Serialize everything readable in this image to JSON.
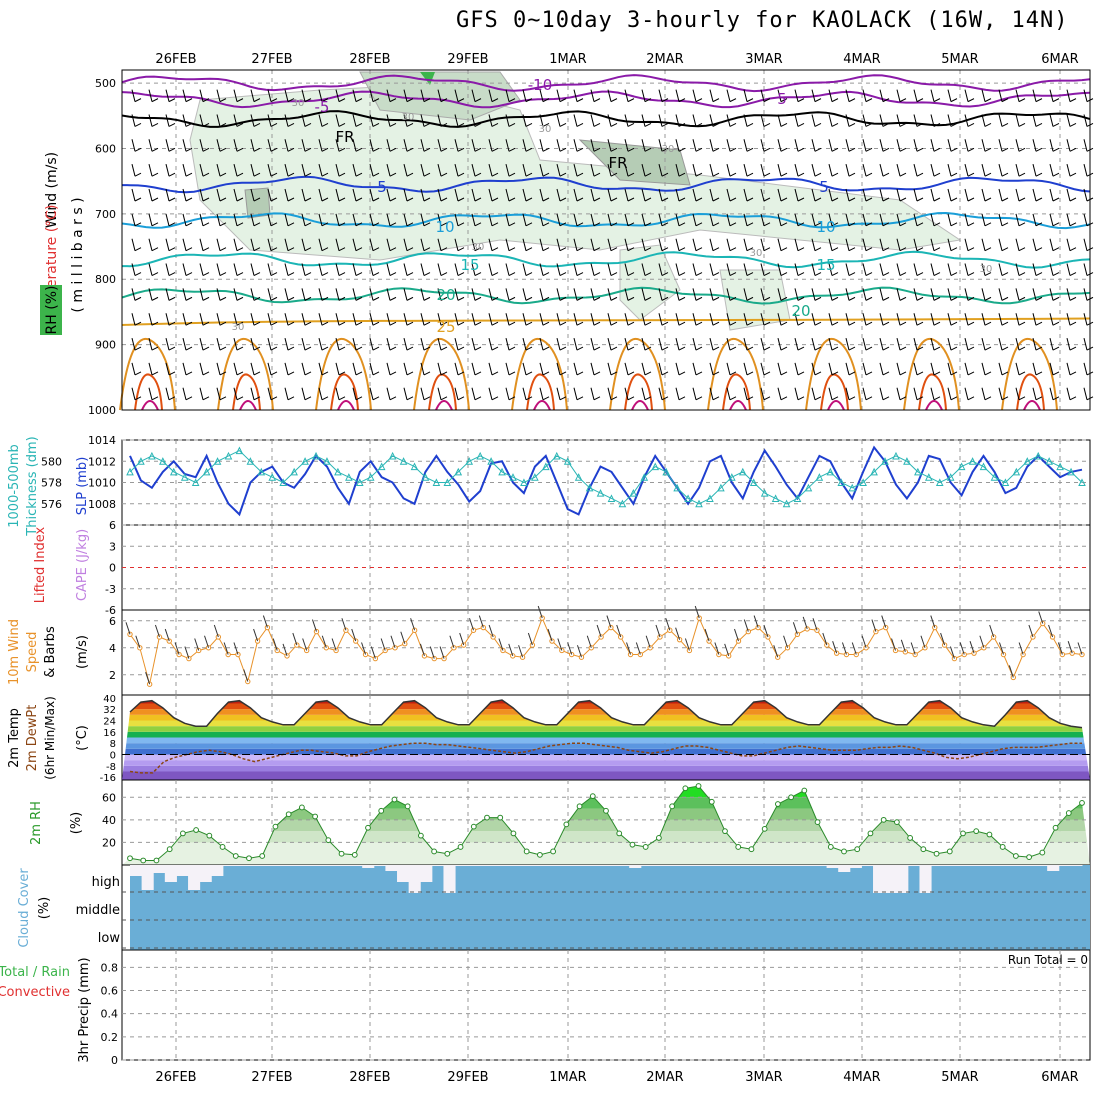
{
  "title": "GFS 0~10day 3-hourly for KAOLACK (16W, 14N)",
  "days": [
    "26FEB",
    "27FEB",
    "28FEB",
    "29FEB",
    "1MAR",
    "2MAR",
    "3MAR",
    "4MAR",
    "5MAR",
    "6MAR"
  ],
  "colors": {
    "slp": "#1f3fcf",
    "thickness": "#2ab5b5",
    "wind10": "#e8922a",
    "rh": "#3fbf3f",
    "cloud": "#6aaed6",
    "li": "#e03030",
    "cape": "#c080e0"
  },
  "panels": {
    "upper": {
      "label_wind": "Wind (m/s)",
      "label_temp": "Temperature (°C)",
      "label_rh": "RH (%)",
      "label_units": "( m i l l i b a r s )",
      "levels": [
        500,
        600,
        700,
        800,
        900,
        1000
      ],
      "isotherm_labels": [
        "-10",
        "-5",
        "FR",
        "FR",
        "5",
        "5",
        "10",
        "10",
        "15",
        "15",
        "20",
        "20",
        "25"
      ],
      "rh_labels": [
        "30",
        "30",
        "30",
        "30",
        "30",
        "30",
        "30",
        "30"
      ]
    },
    "slp": {
      "label_thick1": "1000-500mb",
      "label_thick2": "Thickness (dm)",
      "label_slp": "SLP (mb)",
      "left_ticks": [
        "580",
        "578",
        "576"
      ],
      "right_ticks": [
        "1014",
        "1012",
        "1010",
        "1008"
      ]
    },
    "cape": {
      "label_li": "Lifted Index",
      "label_cape": "CAPE (J/kg)",
      "ticks": [
        "6",
        "3",
        "0",
        "-3",
        "-6"
      ]
    },
    "wind10": {
      "label_1": "10m Wind",
      "label_2": "Speed",
      "label_3": "& Barbs",
      "label_unit": "(m/s)",
      "ticks": [
        "6",
        "4",
        "2"
      ]
    },
    "temp": {
      "label_1": "2m Temp",
      "label_2": "2m DewPt",
      "label_3": "(6hr Min/Max)",
      "label_unit": "(°C)",
      "ticks": [
        "40",
        "32",
        "24",
        "16",
        "8",
        "0",
        "-8",
        "-16"
      ]
    },
    "rh2m": {
      "label_1": "2m RH",
      "label_unit": "(%)",
      "ticks": [
        "60",
        "40",
        "20"
      ]
    },
    "cloud": {
      "label_1": "Cloud Cover",
      "label_unit": "(%)",
      "levels": [
        "high",
        "middle",
        "low"
      ]
    },
    "precip": {
      "label_1": "3hr Precip (mm)",
      "label_2": "Total / Rain",
      "label_3": "Convective",
      "run_total": "Run Total = 0",
      "ticks": [
        "0.8",
        "0.6",
        "0.4",
        "0.2",
        "0"
      ]
    }
  },
  "chart_data": [
    {
      "type": "line",
      "name": "thickness_slp",
      "series": [
        {
          "name": "SLP (mb)",
          "values": [
            1012.5,
            1010.2,
            1009.5,
            1011,
            1012,
            1010.8,
            1010.5,
            1012.5,
            1010,
            1008,
            1007,
            1010,
            1011,
            1011.5,
            1010,
            1009.5,
            1010.8,
            1012.5,
            1011.5,
            1009.5,
            1008,
            1011,
            1012,
            1010.5,
            1010,
            1008.5,
            1008,
            1011,
            1012.5,
            1011,
            1009.8,
            1008.2,
            1009.2,
            1011.8,
            1012,
            1010,
            1009,
            1011.5,
            1012.5,
            1010,
            1007.5,
            1007,
            1009.5,
            1011.5,
            1011,
            1009.5,
            1008,
            1010.5,
            1012.5,
            1011,
            1009.5,
            1008,
            1009.5,
            1012,
            1012.5,
            1010,
            1008.5,
            1011,
            1013,
            1011.5,
            1009.8,
            1008.5,
            1010.5,
            1012.5,
            1012,
            1010,
            1008.5,
            1011,
            1013.3,
            1012,
            1009.8,
            1008.5,
            1010,
            1012.5,
            1012.2,
            1010,
            1008.8,
            1011,
            1012.5,
            1011,
            1009,
            1009.5,
            1011.5,
            1012.5,
            1011.5,
            1010.5,
            1011,
            1011.2
          ]
        },
        {
          "name": "Thickness (dm)",
          "values": [
            579,
            580,
            580.5,
            580,
            579,
            578.5,
            578,
            579,
            580,
            580.5,
            581,
            580,
            579,
            578.5,
            578,
            579,
            580,
            580.5,
            580,
            579,
            578.5,
            578,
            578.5,
            579.5,
            580.5,
            580,
            579.5,
            578.5,
            578,
            578,
            579,
            580,
            580.5,
            580,
            579,
            578.5,
            578,
            578.5,
            579.5,
            580.5,
            580,
            578.5,
            577.5,
            577,
            576.5,
            576,
            577,
            578.5,
            579.5,
            579,
            577.5,
            576.5,
            576,
            576.5,
            577.5,
            578.5,
            579,
            578,
            577,
            576.5,
            576,
            576.5,
            577.5,
            578.5,
            579,
            578,
            577.5,
            578,
            579,
            580,
            580.5,
            580,
            579,
            578.5,
            578,
            578.5,
            579.5,
            580,
            579.5,
            578.5,
            578,
            579,
            580,
            580.5,
            580,
            579.5,
            579,
            578
          ]
        }
      ]
    },
    {
      "type": "line",
      "name": "wind10",
      "series": [
        {
          "name": "10m Wind Speed (m/s)",
          "values": [
            5,
            4,
            1.3,
            4.8,
            4.5,
            3.5,
            3.2,
            3.8,
            4,
            4.8,
            3.5,
            3.5,
            1.5,
            4.5,
            5.5,
            3.8,
            3.4,
            4.2,
            3.8,
            5.2,
            4,
            3.8,
            5.3,
            4.5,
            3.5,
            3.2,
            3.8,
            4,
            4.3,
            5.3,
            3.4,
            3.2,
            3.2,
            4,
            4.2,
            5.3,
            5.5,
            4.8,
            3.8,
            3.4,
            3.3,
            4.2,
            6.2,
            4.5,
            3.8,
            3.5,
            3.3,
            4,
            4.8,
            5.5,
            4.8,
            3.5,
            3.5,
            4,
            4.8,
            5.3,
            4.6,
            3.8,
            6.2,
            4.5,
            3.5,
            3.4,
            4.5,
            5.2,
            5.5,
            4.8,
            3.3,
            4,
            5,
            5.4,
            5.3,
            4.2,
            3.6,
            3.5,
            3.5,
            4,
            5.2,
            5.5,
            3.8,
            3.7,
            3.5,
            4,
            5.5,
            4.2,
            3.2,
            3.5,
            3.6,
            4,
            4.8,
            3.5,
            1.8,
            3.5,
            4.8,
            5.8,
            4.8,
            3.5,
            3.6,
            3.5
          ]
        }
      ]
    },
    {
      "type": "area",
      "name": "temp2m",
      "series": [
        {
          "name": "2m Temp (°C)",
          "values": [
            30,
            37,
            38,
            33,
            26,
            22,
            20,
            20,
            29,
            37,
            38,
            33,
            26,
            23,
            21,
            21,
            29,
            37,
            38,
            33,
            26,
            23,
            21,
            21,
            29,
            37,
            38,
            33,
            26,
            23,
            21,
            21,
            29,
            37,
            38.5,
            33,
            26,
            23,
            21,
            21,
            29,
            37,
            38,
            33,
            26,
            23,
            21,
            21,
            29,
            37,
            38,
            33,
            26,
            23,
            21,
            21,
            29,
            37,
            38,
            33,
            26,
            23,
            21,
            21,
            29,
            37,
            38,
            33,
            26,
            23,
            21,
            21,
            29,
            37,
            38,
            33,
            26,
            23,
            21,
            20,
            28,
            37,
            38,
            33,
            26,
            22,
            20,
            19
          ]
        },
        {
          "name": "2m DewPt (°C)",
          "values": [
            -12,
            -13,
            -13,
            -5,
            -2,
            0,
            2,
            3,
            2,
            0,
            -3,
            -5,
            -3,
            -1,
            1,
            3,
            3,
            2,
            1,
            -1,
            -1,
            2,
            4,
            6,
            7,
            8,
            8,
            7,
            7,
            6,
            5,
            4,
            3,
            2,
            1,
            2,
            4,
            6,
            7,
            8,
            8,
            7,
            6,
            5,
            3,
            2,
            1,
            2,
            4,
            6,
            6,
            5,
            3,
            1,
            -1,
            -1,
            1,
            3,
            5,
            6,
            5,
            4,
            3,
            3,
            3,
            4,
            5,
            5,
            6,
            5,
            3,
            1,
            -2,
            -3,
            -2,
            0,
            2,
            4,
            5,
            5,
            5,
            6,
            7,
            8,
            8
          ]
        }
      ]
    },
    {
      "type": "area",
      "name": "rh2m",
      "series": [
        {
          "name": "2m RH (%)",
          "values": [
            6,
            4,
            4,
            14,
            28,
            31,
            26,
            16,
            8,
            6,
            8,
            34,
            45,
            51,
            43,
            22,
            10,
            9,
            33,
            48,
            58,
            52,
            26,
            12,
            10,
            16,
            34,
            42,
            42,
            28,
            12,
            9,
            12,
            36,
            52,
            61,
            48,
            28,
            18,
            16,
            24,
            52,
            68,
            70,
            56,
            30,
            16,
            14,
            32,
            54,
            60,
            66,
            38,
            16,
            12,
            14,
            28,
            40,
            38,
            24,
            14,
            10,
            12,
            28,
            30,
            27,
            16,
            8,
            7,
            11,
            33,
            46,
            55
          ]
        }
      ]
    },
    {
      "type": "bar",
      "name": "cloud_high",
      "series": [
        {
          "name": "high cloud (%)",
          "values": [
            40,
            90,
            30,
            60,
            40,
            90,
            60,
            40,
            5,
            5,
            5,
            5,
            5,
            5,
            5,
            5,
            5,
            5,
            5,
            5,
            10,
            5,
            20,
            60,
            100,
            60,
            5,
            100,
            5,
            5,
            5,
            5,
            5,
            5,
            5,
            5,
            5,
            5,
            5,
            5,
            5,
            5,
            5,
            10,
            5,
            5,
            5,
            5,
            5,
            5,
            5,
            5,
            5,
            5,
            5,
            5,
            5,
            5,
            5,
            5,
            10,
            25,
            10,
            5,
            100,
            100,
            100,
            5,
            100,
            5,
            5,
            5,
            5,
            5,
            5,
            5,
            5,
            5,
            5,
            20,
            5,
            5
          ]
        }
      ]
    }
  ]
}
